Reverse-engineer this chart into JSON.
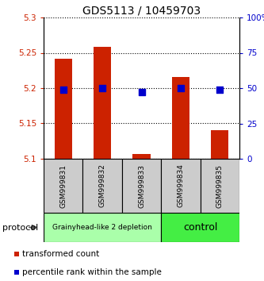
{
  "title": "GDS5113 / 10459703",
  "samples": [
    "GSM999831",
    "GSM999832",
    "GSM999833",
    "GSM999834",
    "GSM999835"
  ],
  "bar_bottoms": [
    5.1,
    5.1,
    5.1,
    5.1,
    5.1
  ],
  "bar_tops": [
    5.242,
    5.258,
    5.107,
    5.216,
    5.14
  ],
  "percentile_values": [
    49,
    50,
    47,
    50,
    49
  ],
  "bar_color": "#cc2200",
  "dot_color": "#0000cc",
  "ylim_left": [
    5.1,
    5.3
  ],
  "ylim_right": [
    0,
    100
  ],
  "yticks_left": [
    5.1,
    5.15,
    5.2,
    5.25,
    5.3
  ],
  "yticks_right": [
    0,
    25,
    50,
    75,
    100
  ],
  "ytick_labels_left": [
    "5.1",
    "5.15",
    "5.2",
    "5.25",
    "5.3"
  ],
  "ytick_labels_right": [
    "0",
    "25",
    "50",
    "75",
    "100%"
  ],
  "groups": [
    {
      "label": "Grainyhead-like 2 depletion",
      "indices": [
        0,
        1,
        2
      ],
      "color": "#aaffaa"
    },
    {
      "label": "control",
      "indices": [
        3,
        4
      ],
      "color": "#44ee44"
    }
  ],
  "protocol_label": "protocol",
  "legend_items": [
    {
      "label": "transformed count",
      "color": "#cc2200"
    },
    {
      "label": "percentile rank within the sample",
      "color": "#0000cc"
    }
  ],
  "background_color": "#ffffff",
  "bar_width": 0.45,
  "dot_size": 28,
  "sample_label_color": "#cccccc",
  "title_fontsize": 10,
  "tick_fontsize": 7.5,
  "sample_fontsize": 6.5,
  "group_fontsize_small": 6.5,
  "group_fontsize_large": 9,
  "legend_fontsize": 7.5
}
